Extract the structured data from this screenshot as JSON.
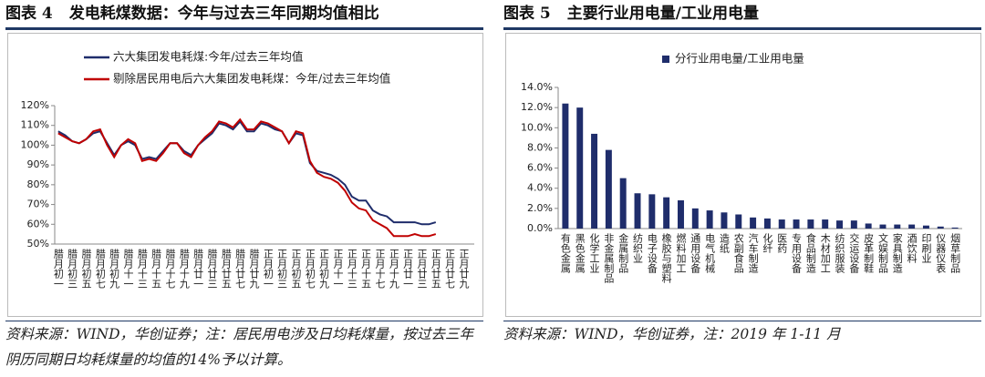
{
  "chart_data": [
    {
      "type": "line",
      "figure": "图表 4",
      "title": "发电耗煤数据：今年与过去三年同期均值相比",
      "categories": [
        "腊月初一",
        null,
        "腊月初三",
        null,
        "腊月初五",
        null,
        "腊月初七",
        null,
        "腊月初九",
        null,
        "腊月十一",
        null,
        "腊月十三",
        null,
        "腊月十五",
        null,
        "腊月十七",
        null,
        "腊月十九",
        null,
        "腊月廿一",
        null,
        "腊月廿三",
        null,
        "腊月廿五",
        null,
        "腊月廿七",
        null,
        "腊月廿九",
        null,
        "正月初一",
        null,
        "正月初三",
        null,
        "正月初五",
        null,
        "正月初七",
        null,
        "正月初九",
        null,
        "正月十一",
        null,
        "正月十三",
        null,
        "正月十五",
        null,
        "正月十七",
        null,
        "正月十九",
        null,
        "正月廿一",
        null,
        "正月廿三",
        null,
        "正月廿五",
        null,
        "正月廿七",
        null,
        "正月廿九",
        null
      ],
      "series": [
        {
          "name": "六大集团发电耗煤:今年/过去三年均值",
          "color": "#1f2d6b",
          "values": [
            107,
            105,
            102,
            101,
            103,
            106,
            107,
            101,
            95,
            100,
            102,
            100,
            93,
            94,
            93,
            97,
            101,
            101,
            97,
            95,
            100,
            103,
            106,
            111,
            110,
            108,
            112,
            107,
            107,
            111,
            110,
            108,
            107,
            101,
            106,
            105,
            91,
            87,
            86,
            85,
            83,
            80,
            74,
            72,
            72,
            67,
            65,
            64,
            61,
            61,
            61,
            61,
            60,
            60,
            61,
            null,
            null,
            null,
            null,
            null
          ]
        },
        {
          "name": "剔除居民用电后六大集团发电耗煤：今年/过去三年均值",
          "color": "#c00000",
          "values": [
            106,
            104,
            102,
            101,
            103,
            107,
            108,
            100,
            94,
            100,
            103,
            101,
            92,
            93,
            92,
            96,
            101,
            101,
            96,
            94,
            100,
            104,
            107,
            112,
            111,
            109,
            113,
            108,
            108,
            112,
            111,
            109,
            107,
            101,
            107,
            106,
            92,
            86,
            84,
            83,
            81,
            77,
            71,
            68,
            67,
            62,
            60,
            58,
            54,
            54,
            54,
            55,
            54,
            54,
            55,
            null,
            null,
            null,
            null,
            null
          ]
        }
      ],
      "ylim": [
        50,
        120
      ],
      "yticks": [
        {
          "value": 50,
          "label": "50%"
        },
        {
          "value": 60,
          "label": "60%"
        },
        {
          "value": 70,
          "label": "70%"
        },
        {
          "value": 80,
          "label": "80%"
        },
        {
          "value": 90,
          "label": "90%"
        },
        {
          "value": 100,
          "label": "100%"
        },
        {
          "value": 110,
          "label": "110%"
        },
        {
          "value": 120,
          "label": "120%"
        }
      ],
      "source": "资料来源：WIND，华创证券；注：居民用电涉及日均耗煤量，按过去三年阴历同期日均耗煤量的均值的14%予以计算。"
    },
    {
      "type": "bar",
      "figure": "图表 5",
      "title": "主要行业用电量/工业用电量",
      "categories": [
        "有色金属",
        "黑色金属",
        "化学工业",
        "非金属制品",
        "金属制品",
        "纺织业",
        "电子设备",
        "橡胶与塑料",
        "燃料加工",
        "通用设备",
        "电气机械",
        "造纸",
        "农副食品",
        "汽车制造",
        "化纤",
        "医药",
        "专用设备",
        "食品制造",
        "木材加工",
        "纺织服装",
        "交运设备",
        "皮革制鞋",
        "文娱制品",
        "家具制造",
        "酒饮料",
        "印刷业",
        "仪器仪表",
        "烟草制品"
      ],
      "series": [
        {
          "name": "分行业用电量/工业用电量",
          "color": "#1f2d6b",
          "values": [
            12.4,
            12.0,
            9.4,
            7.8,
            5.0,
            3.5,
            3.4,
            3.1,
            2.8,
            2.0,
            1.8,
            1.6,
            1.4,
            1.1,
            1.0,
            0.9,
            0.9,
            0.9,
            0.9,
            0.8,
            0.8,
            0.5,
            0.4,
            0.4,
            0.4,
            0.3,
            0.2,
            0.1
          ]
        }
      ],
      "ylim": [
        0,
        14
      ],
      "yticks": [
        {
          "value": 0,
          "label": "0.0%"
        },
        {
          "value": 2,
          "label": "2.0%"
        },
        {
          "value": 4,
          "label": "4.0%"
        },
        {
          "value": 6,
          "label": "6.0%"
        },
        {
          "value": 8,
          "label": "8.0%"
        },
        {
          "value": 10,
          "label": "10.0%"
        },
        {
          "value": 12,
          "label": "12.0%"
        },
        {
          "value": 14,
          "label": "14.0%"
        }
      ],
      "source": "资料来源：WIND，华创证券，注：2019 年 1-11 月"
    }
  ]
}
